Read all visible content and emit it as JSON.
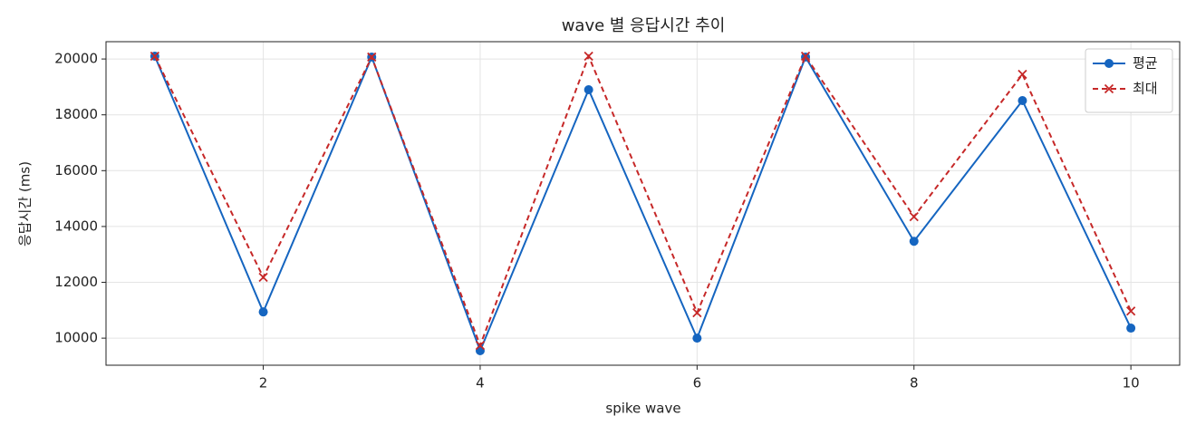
{
  "chart_data": {
    "type": "line",
    "title": "wave 별 응답시간 추이",
    "x_label": "spike wave",
    "y_label": "응답시간 (ms)",
    "x": [
      1,
      2,
      3,
      4,
      5,
      6,
      7,
      8,
      9,
      10
    ],
    "series": [
      {
        "name": "평균",
        "color": "#1565c0",
        "dash": false,
        "marker": "o",
        "values": [
          20100,
          10940,
          20070,
          9550,
          18900,
          10000,
          20070,
          13470,
          18510,
          10360
        ]
      },
      {
        "name": "최대",
        "color": "#c62828",
        "dash": true,
        "marker": "x",
        "values": [
          20100,
          12180,
          20070,
          9740,
          20100,
          10910,
          20100,
          14350,
          19450,
          10970
        ]
      }
    ],
    "xlim": [
      0.55,
      10.45
    ],
    "ylim": [
      9030,
      20620
    ],
    "xticks": [
      2,
      4,
      6,
      8,
      10
    ],
    "yticks": [
      10000,
      12000,
      14000,
      16000,
      18000,
      20000
    ],
    "grid": true,
    "legend": "upper right"
  }
}
